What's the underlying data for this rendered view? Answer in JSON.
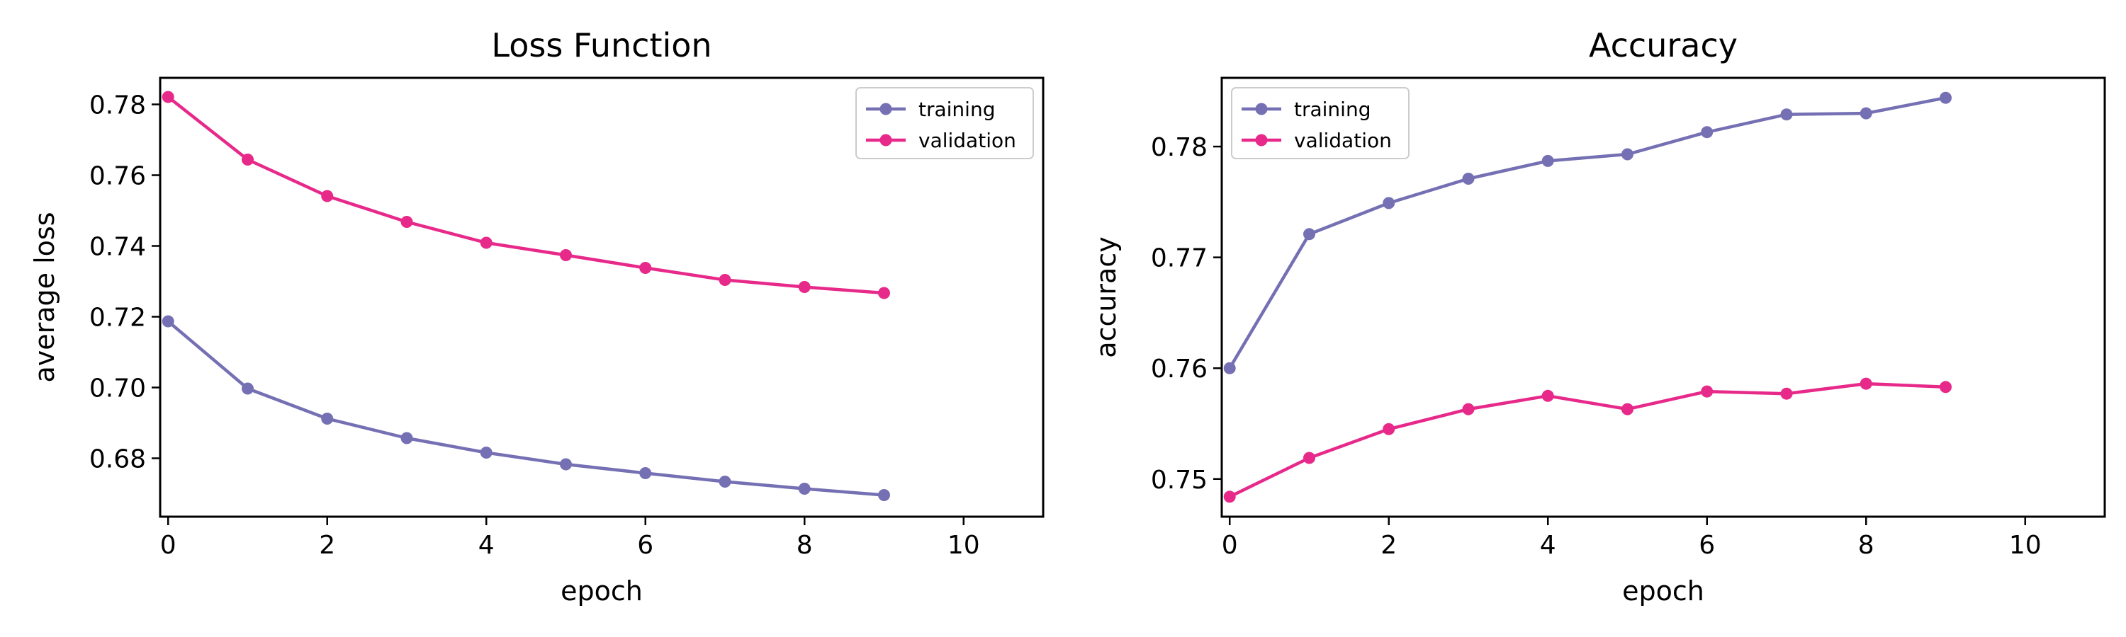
{
  "chart_data": [
    {
      "type": "line",
      "title": "Loss Function",
      "xlabel": "epoch",
      "ylabel": "average loss",
      "xlim": [
        -0.1,
        11
      ],
      "ylim": [
        0.6635,
        0.7875
      ],
      "xticks": [
        0,
        2,
        4,
        6,
        8,
        10
      ],
      "xtick_labels": [
        "0",
        "2",
        "4",
        "6",
        "8",
        "10"
      ],
      "yticks": [
        0.68,
        0.7,
        0.72,
        0.74,
        0.76,
        0.78
      ],
      "ytick_labels": [
        "0.68",
        "0.70",
        "0.72",
        "0.74",
        "0.76",
        "0.78"
      ],
      "legend_position": "top-right",
      "grid": false,
      "x": [
        0,
        1,
        2,
        3,
        4,
        5,
        6,
        7,
        8,
        9
      ],
      "series": [
        {
          "name": "training",
          "color": "#7570b3",
          "values": [
            0.7187,
            0.6997,
            0.6912,
            0.6857,
            0.6816,
            0.6783,
            0.6758,
            0.6734,
            0.6714,
            0.6696
          ]
        },
        {
          "name": "validation",
          "color": "#e7298a",
          "values": [
            0.7821,
            0.7644,
            0.7541,
            0.7468,
            0.7409,
            0.7374,
            0.7338,
            0.7304,
            0.7284,
            0.7267
          ]
        }
      ]
    },
    {
      "type": "line",
      "title": "Accuracy",
      "xlabel": "epoch",
      "ylabel": "accuracy",
      "xlim": [
        -0.1,
        11
      ],
      "ylim": [
        0.7466,
        0.7862
      ],
      "xticks": [
        0,
        2,
        4,
        6,
        8,
        10
      ],
      "xtick_labels": [
        "0",
        "2",
        "4",
        "6",
        "8",
        "10"
      ],
      "yticks": [
        0.75,
        0.76,
        0.77,
        0.78
      ],
      "ytick_labels": [
        "0.75",
        "0.76",
        "0.77",
        "0.78"
      ],
      "legend_position": "top-left",
      "grid": false,
      "x": [
        0,
        1,
        2,
        3,
        4,
        5,
        6,
        7,
        8,
        9
      ],
      "series": [
        {
          "name": "training",
          "color": "#7570b3",
          "values": [
            0.76,
            0.7721,
            0.7749,
            0.7771,
            0.7787,
            0.7793,
            0.7813,
            0.7829,
            0.783,
            0.7844
          ]
        },
        {
          "name": "validation",
          "color": "#e7298a",
          "values": [
            0.7484,
            0.7519,
            0.7545,
            0.7563,
            0.7575,
            0.7563,
            0.7579,
            0.7577,
            0.7586,
            0.7583
          ]
        }
      ]
    }
  ]
}
